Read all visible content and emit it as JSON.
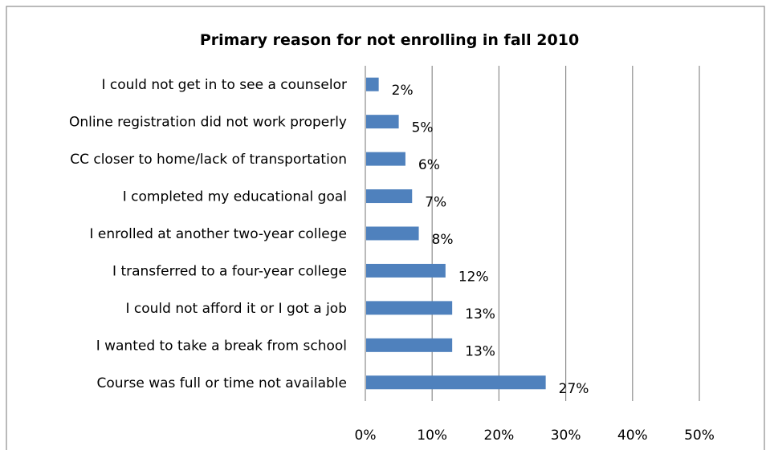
{
  "chart_data": {
    "type": "bar",
    "orientation": "horizontal",
    "title": "Primary reason for not enrolling in fall 2010",
    "categories": [
      "I could not get in to see a counselor",
      "Online registration did not work properly",
      "CC closer to home/lack of transportation",
      "I completed my educational goal",
      "I enrolled at another two-year college",
      "I transferred to a four-year college",
      "I could not afford it or I got a job",
      "I wanted to take a break from school",
      "Course was full or time not available"
    ],
    "values": [
      2,
      5,
      6,
      7,
      8,
      12,
      13,
      13,
      27
    ],
    "data_labels": [
      "2%",
      "5%",
      "6%",
      "7%",
      "8%",
      "12%",
      "13%",
      "13%",
      "27%"
    ],
    "x_ticks": [
      "0%",
      "10%",
      "20%",
      "30%",
      "40%",
      "50%"
    ],
    "xlim": [
      0,
      50
    ],
    "bar_color": "#4F81BD",
    "gridlines": true,
    "legend": "none"
  }
}
